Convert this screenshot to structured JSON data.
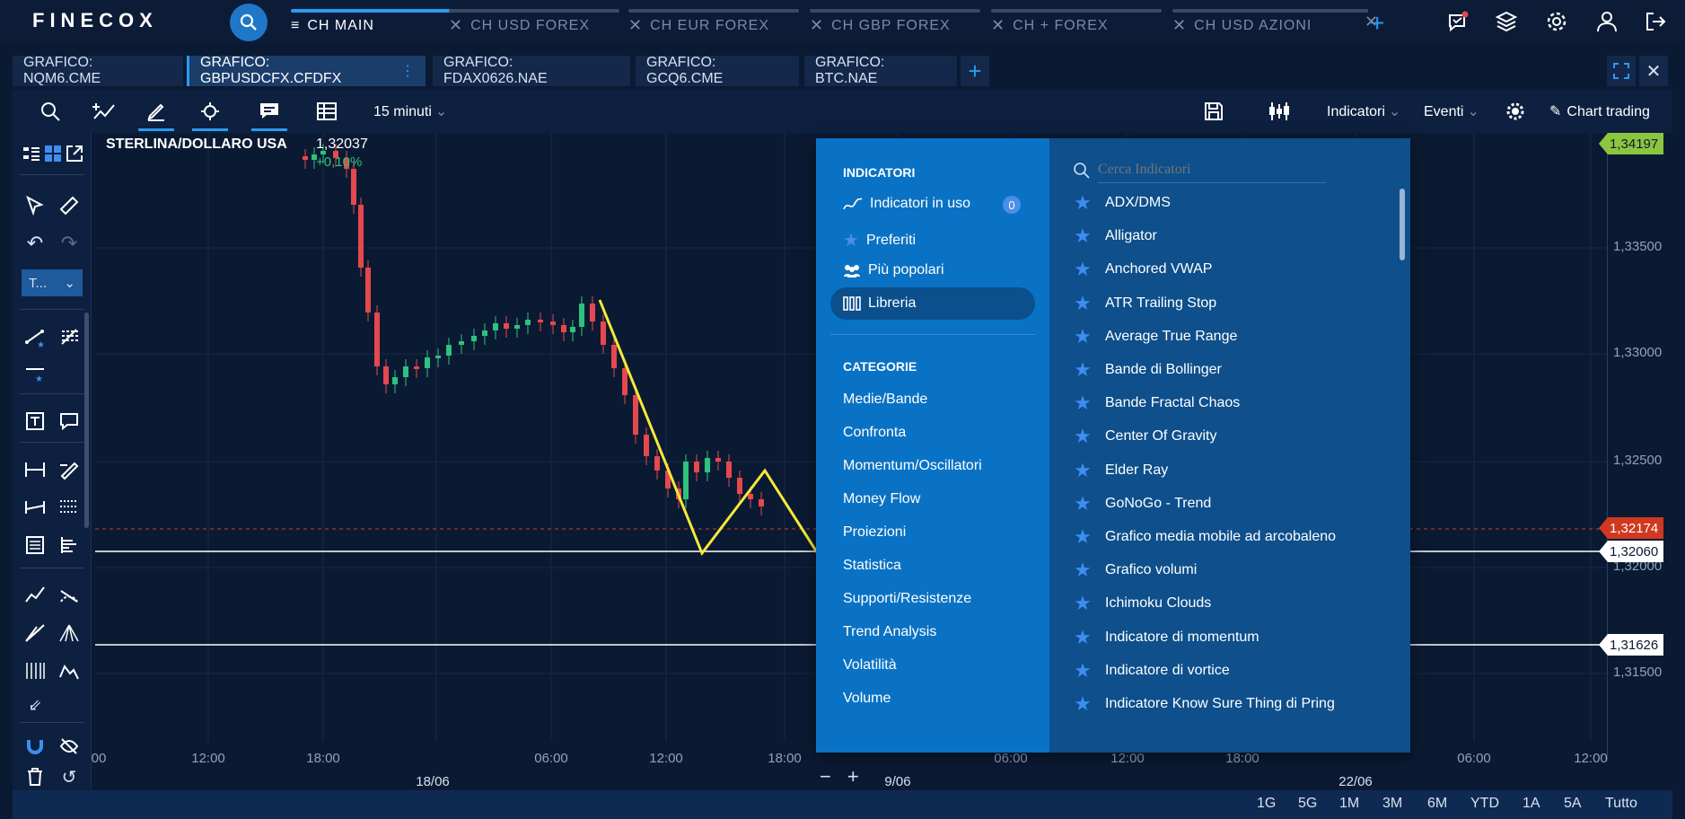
{
  "app": {
    "logo": "FINECOX",
    "brand_color": "#1f77c8"
  },
  "main_tabs": [
    {
      "label": "CH MAIN",
      "active": true
    },
    {
      "label": "CH USD FOREX",
      "active": false
    },
    {
      "label": "CH EUR FOREX",
      "active": false
    },
    {
      "label": "CH GBP FOREX",
      "active": false
    },
    {
      "label": "CH + FOREX",
      "active": false
    },
    {
      "label": "CH USD AZIONI",
      "active": false
    }
  ],
  "chart_tabs": [
    {
      "label": "GRAFICO: NQM6.CME",
      "active": false
    },
    {
      "label": "GRAFICO: GBPUSDCFX.CFDFX",
      "active": true
    },
    {
      "label": "GRAFICO: FDAX0626.NAE",
      "active": false
    },
    {
      "label": "GRAFICO: GCQ6.CME",
      "active": false
    },
    {
      "label": "GRAFICO: BTC.NAE",
      "active": false
    }
  ],
  "toolbar": {
    "interval": "15 minuti",
    "indicators": "Indicatori",
    "events": "Eventi",
    "chart_trading": "Chart trading"
  },
  "left_tools": {
    "text_dropdown": "T..."
  },
  "instrument": {
    "name": "STERLINA/DOLLARO USA",
    "price": "1,32037",
    "change": "+0,10%",
    "change_color": "#2ec27e"
  },
  "price_axis": {
    "labels": [
      "1,33500",
      "1,33000",
      "1,32500",
      "1,32000",
      "1,31500"
    ],
    "badges": [
      {
        "value": "1,34197",
        "color": "#8cc63f"
      },
      {
        "value": "1,32174",
        "color": "#d0391f"
      },
      {
        "value": "1,32060",
        "color": "#ffffff"
      },
      {
        "value": "1,31626",
        "color": "#ffffff"
      }
    ]
  },
  "time_axis": {
    "labels": [
      "00",
      "12:00",
      "18:00",
      "06:00",
      "12:00",
      "18:00",
      "06:00",
      "12:00",
      "18:00",
      "06:00",
      "12:00"
    ],
    "dates": [
      "18/06",
      "9/06",
      "22/06"
    ]
  },
  "ranges": [
    "1G",
    "5G",
    "1M",
    "3M",
    "6M",
    "YTD",
    "1A",
    "5A",
    "Tutto"
  ],
  "indicator_panel": {
    "header": "INDICATORI",
    "menu": [
      {
        "label": "Indicatori in uso",
        "icon": "line-chart-icon",
        "badge": "0"
      },
      {
        "label": "Preferiti",
        "icon": "star-icon"
      },
      {
        "label": "Più popolari",
        "icon": "people-icon"
      },
      {
        "label": "Libreria",
        "icon": "library-icon",
        "selected": true
      }
    ],
    "categories_header": "CATEGORIE",
    "categories": [
      "Medie/Bande",
      "Confronta",
      "Momentum/Oscillatori",
      "Money Flow",
      "Proiezioni",
      "Statistica",
      "Supporti/Resistenze",
      "Trend Analysis",
      "Volatilità",
      "Volume"
    ],
    "search_placeholder": "Cerca Indicatori",
    "indicators": [
      "ADX/DMS",
      "Alligator",
      "Anchored VWAP",
      "ATR Trailing Stop",
      "Average True Range",
      "Bande di Bollinger",
      "Bande Fractal Chaos",
      "Center Of Gravity",
      "Elder Ray",
      "GoNoGo - Trend",
      "Grafico media mobile ad arcobaleno",
      "Grafico volumi",
      "Ichimoku Clouds",
      "Indicatore di momentum",
      "Indicatore di vortice",
      "Indicatore Know Sure Thing di Pring"
    ]
  },
  "colors": {
    "up": "#2ec27e",
    "down": "#e5484d",
    "drawing": "#f7e83a"
  }
}
